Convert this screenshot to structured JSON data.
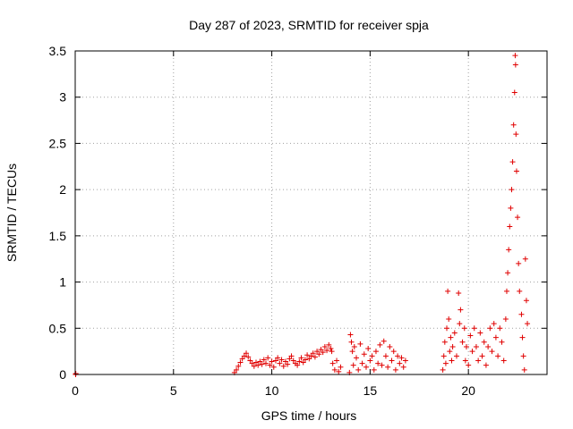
{
  "chart_data": {
    "type": "scatter",
    "title": "Day 287 of 2023, SRMTID for receiver spja",
    "xlabel": "GPS time / hours",
    "ylabel": "SRMTID / TECUs",
    "xlim": [
      0,
      24
    ],
    "ylim": [
      0,
      3.5
    ],
    "xticks": [
      0,
      5,
      10,
      15,
      20
    ],
    "yticks": [
      0,
      0.5,
      1,
      1.5,
      2,
      2.5,
      3,
      3.5
    ],
    "grid": true,
    "marker": "+",
    "marker_color": "#e00000",
    "series": [
      {
        "name": "SRMTID",
        "points": [
          [
            0.02,
            0.0
          ],
          [
            0.03,
            0.01
          ],
          [
            8.1,
            0.02
          ],
          [
            8.2,
            0.05
          ],
          [
            8.3,
            0.09
          ],
          [
            8.4,
            0.13
          ],
          [
            8.5,
            0.17
          ],
          [
            8.6,
            0.2
          ],
          [
            8.7,
            0.23
          ],
          [
            8.8,
            0.19
          ],
          [
            8.9,
            0.15
          ],
          [
            9.0,
            0.12
          ],
          [
            9.1,
            0.09
          ],
          [
            9.2,
            0.13
          ],
          [
            9.3,
            0.1
          ],
          [
            9.4,
            0.14
          ],
          [
            9.5,
            0.11
          ],
          [
            9.6,
            0.16
          ],
          [
            9.7,
            0.12
          ],
          [
            9.8,
            0.18
          ],
          [
            9.9,
            0.1
          ],
          [
            10.0,
            0.14
          ],
          [
            10.1,
            0.08
          ],
          [
            10.2,
            0.15
          ],
          [
            10.3,
            0.18
          ],
          [
            10.4,
            0.12
          ],
          [
            10.5,
            0.16
          ],
          [
            10.6,
            0.09
          ],
          [
            10.7,
            0.14
          ],
          [
            10.8,
            0.11
          ],
          [
            10.9,
            0.17
          ],
          [
            11.0,
            0.2
          ],
          [
            11.1,
            0.15
          ],
          [
            11.2,
            0.12
          ],
          [
            11.3,
            0.1
          ],
          [
            11.4,
            0.14
          ],
          [
            11.5,
            0.18
          ],
          [
            11.6,
            0.13
          ],
          [
            11.7,
            0.16
          ],
          [
            11.8,
            0.21
          ],
          [
            11.9,
            0.17
          ],
          [
            12.0,
            0.2
          ],
          [
            12.1,
            0.23
          ],
          [
            12.2,
            0.19
          ],
          [
            12.3,
            0.25
          ],
          [
            12.4,
            0.22
          ],
          [
            12.5,
            0.27
          ],
          [
            12.6,
            0.24
          ],
          [
            12.7,
            0.3
          ],
          [
            12.8,
            0.26
          ],
          [
            12.9,
            0.32
          ],
          [
            13.0,
            0.28
          ],
          [
            13.05,
            0.25
          ],
          [
            13.1,
            0.12
          ],
          [
            13.2,
            0.05
          ],
          [
            13.3,
            0.15
          ],
          [
            13.4,
            0.03
          ],
          [
            13.5,
            0.08
          ],
          [
            13.95,
            0.02
          ],
          [
            14.0,
            0.43
          ],
          [
            14.05,
            0.35
          ],
          [
            14.1,
            0.25
          ],
          [
            14.15,
            0.1
          ],
          [
            14.2,
            0.3
          ],
          [
            14.3,
            0.18
          ],
          [
            14.4,
            0.05
          ],
          [
            14.5,
            0.33
          ],
          [
            14.6,
            0.12
          ],
          [
            14.7,
            0.22
          ],
          [
            14.8,
            0.08
          ],
          [
            14.9,
            0.28
          ],
          [
            15.0,
            0.15
          ],
          [
            15.1,
            0.2
          ],
          [
            15.2,
            0.05
          ],
          [
            15.3,
            0.25
          ],
          [
            15.4,
            0.12
          ],
          [
            15.5,
            0.32
          ],
          [
            15.6,
            0.1
          ],
          [
            15.7,
            0.36
          ],
          [
            15.8,
            0.2
          ],
          [
            15.9,
            0.08
          ],
          [
            16.0,
            0.3
          ],
          [
            16.1,
            0.15
          ],
          [
            16.2,
            0.25
          ],
          [
            16.3,
            0.05
          ],
          [
            16.4,
            0.2
          ],
          [
            16.5,
            0.12
          ],
          [
            16.6,
            0.18
          ],
          [
            16.7,
            0.08
          ],
          [
            16.8,
            0.15
          ],
          [
            18.7,
            0.05
          ],
          [
            18.75,
            0.2
          ],
          [
            18.8,
            0.35
          ],
          [
            18.85,
            0.12
          ],
          [
            18.9,
            0.5
          ],
          [
            18.95,
            0.9
          ],
          [
            19.0,
            0.6
          ],
          [
            19.05,
            0.25
          ],
          [
            19.1,
            0.4
          ],
          [
            19.15,
            0.15
          ],
          [
            19.2,
            0.3
          ],
          [
            19.3,
            0.45
          ],
          [
            19.4,
            0.2
          ],
          [
            19.5,
            0.88
          ],
          [
            19.55,
            0.55
          ],
          [
            19.6,
            0.7
          ],
          [
            19.7,
            0.35
          ],
          [
            19.8,
            0.5
          ],
          [
            19.85,
            0.15
          ],
          [
            19.9,
            0.3
          ],
          [
            20.0,
            0.1
          ],
          [
            20.1,
            0.42
          ],
          [
            20.2,
            0.25
          ],
          [
            20.3,
            0.5
          ],
          [
            20.4,
            0.3
          ],
          [
            20.5,
            0.15
          ],
          [
            20.6,
            0.45
          ],
          [
            20.7,
            0.2
          ],
          [
            20.8,
            0.35
          ],
          [
            20.9,
            0.1
          ],
          [
            21.0,
            0.3
          ],
          [
            21.1,
            0.5
          ],
          [
            21.2,
            0.25
          ],
          [
            21.3,
            0.55
          ],
          [
            21.4,
            0.4
          ],
          [
            21.5,
            0.2
          ],
          [
            21.6,
            0.5
          ],
          [
            21.7,
            0.35
          ],
          [
            21.8,
            0.15
          ],
          [
            21.9,
            0.6
          ],
          [
            21.95,
            0.9
          ],
          [
            22.0,
            1.1
          ],
          [
            22.05,
            1.35
          ],
          [
            22.1,
            1.6
          ],
          [
            22.15,
            1.8
          ],
          [
            22.2,
            2.0
          ],
          [
            22.25,
            2.3
          ],
          [
            22.3,
            2.7
          ],
          [
            22.35,
            3.05
          ],
          [
            22.38,
            3.45
          ],
          [
            22.4,
            3.35
          ],
          [
            22.42,
            2.6
          ],
          [
            22.45,
            2.2
          ],
          [
            22.5,
            1.7
          ],
          [
            22.55,
            1.2
          ],
          [
            22.6,
            0.9
          ],
          [
            22.7,
            0.65
          ],
          [
            22.75,
            0.4
          ],
          [
            22.8,
            0.2
          ],
          [
            22.85,
            0.05
          ],
          [
            22.9,
            1.25
          ],
          [
            22.95,
            0.8
          ],
          [
            23.0,
            0.55
          ]
        ]
      }
    ]
  }
}
